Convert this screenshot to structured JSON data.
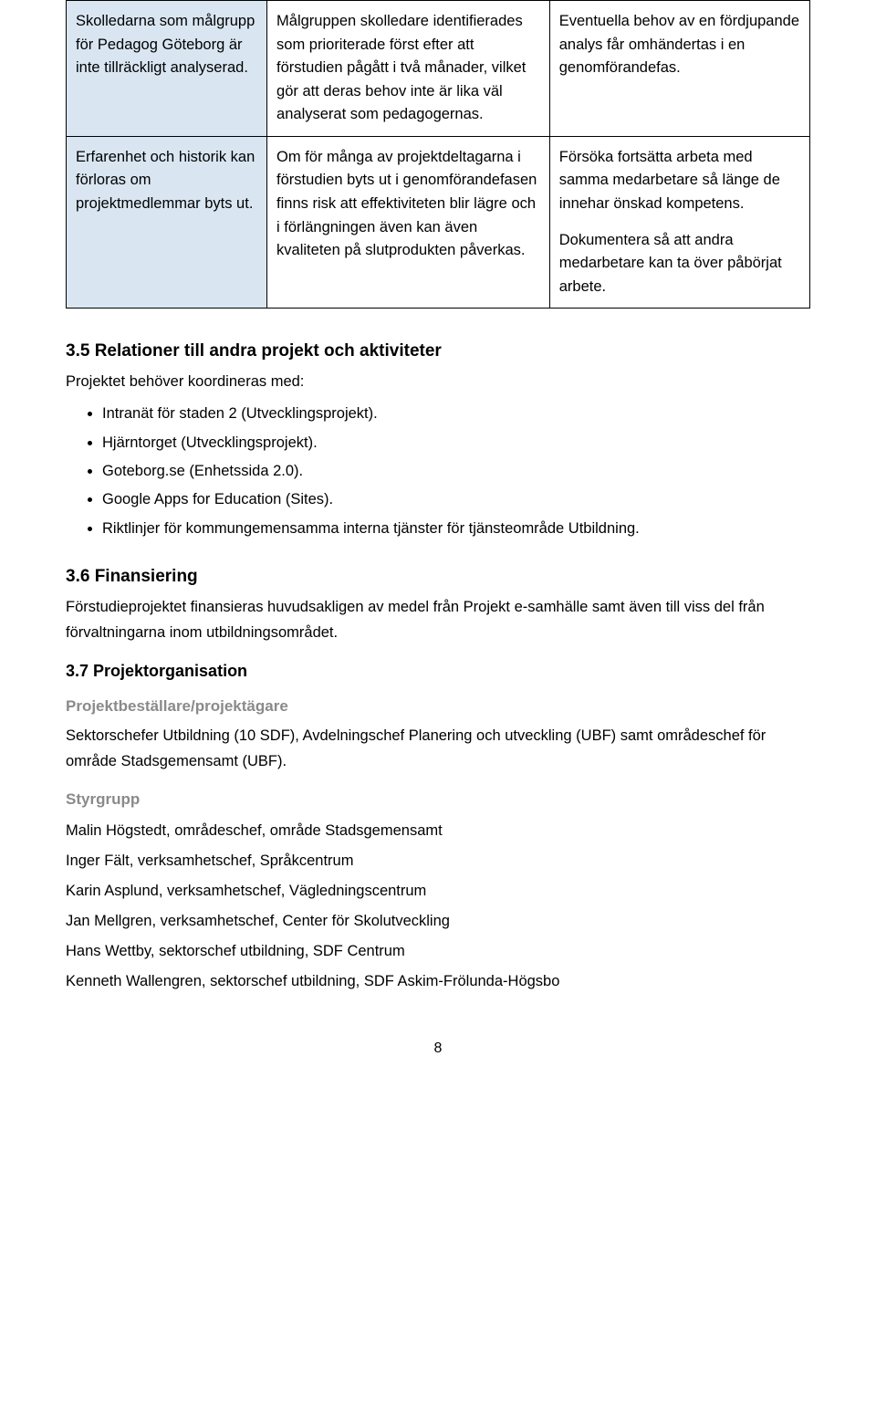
{
  "table": {
    "rows": [
      {
        "col1": "Skolledarna som målgrupp för Pedagog Göteborg är inte tillräckligt analyserad.",
        "col2": "Målgruppen skolledare identifierades som prioriterade först efter att förstudien pågått i två månader, vilket gör att deras behov inte är lika väl analyserat som pedagogernas.",
        "col3a": "Eventuella behov av en fördjupande analys får omhändertas i en genomförandefas.",
        "col3b": ""
      },
      {
        "col1": "Erfarenhet och historik kan förloras om projektmedlemmar byts ut.",
        "col2": "Om för många av projektdeltagarna i förstudien byts ut i genomförandefasen finns risk att effektiviteten blir lägre och i förlängningen även kan även kvaliteten på slutprodukten påverkas.",
        "col3a": "Försöka fortsätta arbeta med samma medarbetare så länge de innehar önskad kompetens.",
        "col3b": "Dokumentera så att andra medarbetare kan ta över påbörjat arbete."
      }
    ]
  },
  "sec35": {
    "title": "3.5 Relationer till andra projekt och aktiviteter",
    "intro": "Projektet behöver koordineras med:",
    "items": [
      "Intranät för staden 2 (Utvecklingsprojekt).",
      "Hjärntorget (Utvecklingsprojekt).",
      "Goteborg.se (Enhetssida 2.0).",
      "Google Apps for Education (Sites).",
      "Riktlinjer för kommungemensamma interna tjänster för tjänsteområde Utbildning."
    ]
  },
  "sec36": {
    "title": "3.6 Finansiering",
    "body": "Förstudieprojektet finansieras huvudsakligen av medel från Projekt e-samhälle samt även till viss del från förvaltningarna inom utbildningsområdet."
  },
  "sec37": {
    "title": "3.7 Projektorganisation",
    "owner": {
      "heading": "Projektbeställare/projektägare",
      "body": "Sektorschefer Utbildning (10 SDF), Avdelningschef Planering och utveckling (UBF) samt områdeschef för område Stadsgemensamt (UBF)."
    },
    "steering": {
      "heading": "Styrgrupp",
      "members": [
        "Malin Högstedt, områdeschef, område Stadsgemensamt",
        "Inger Fält, verksamhetschef, Språkcentrum",
        "Karin Asplund, verksamhetschef, Vägledningscentrum",
        "Jan Mellgren, verksamhetschef, Center för Skolutveckling",
        "Hans Wettby, sektorschef utbildning, SDF Centrum",
        "Kenneth Wallengren, sektorschef utbildning, SDF Askim-Frölunda-Högsbo"
      ]
    }
  },
  "pagenum": "8"
}
